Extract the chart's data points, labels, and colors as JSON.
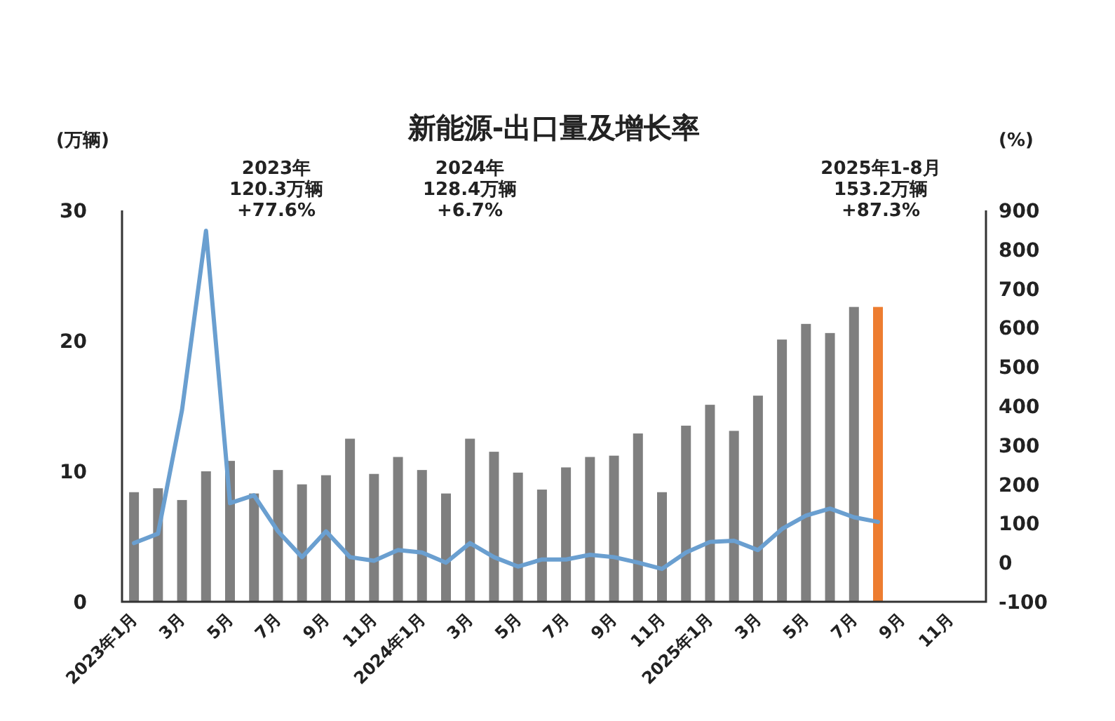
{
  "chart_data": {
    "type": "bar",
    "title": "新能源-出口量及增长率",
    "ylabel": "(万辆)",
    "y2label": "(%)",
    "categories": [
      "2023年1月",
      null,
      "3月",
      null,
      "5月",
      null,
      "7月",
      null,
      "9月",
      null,
      "11月",
      null,
      "2024年1月",
      null,
      "3月",
      null,
      "5月",
      null,
      "7月",
      null,
      "9月",
      null,
      "11月",
      null,
      "2025年1月",
      null,
      "3月",
      null,
      "5月",
      null,
      "7月",
      null,
      "9月",
      null,
      "11月",
      null
    ],
    "series": [
      {
        "colors": [
          "#7f7f7f",
          "#7f7f7f",
          "#7f7f7f",
          "#7f7f7f",
          "#7f7f7f",
          "#7f7f7f",
          "#7f7f7f",
          "#7f7f7f",
          "#7f7f7f",
          "#7f7f7f",
          "#7f7f7f",
          "#7f7f7f",
          "#7f7f7f",
          "#7f7f7f",
          "#7f7f7f",
          "#7f7f7f",
          "#7f7f7f",
          "#7f7f7f",
          "#7f7f7f",
          "#7f7f7f",
          "#7f7f7f",
          "#7f7f7f",
          "#7f7f7f",
          "#7f7f7f",
          "#7f7f7f",
          "#7f7f7f",
          "#7f7f7f",
          "#7f7f7f",
          "#7f7f7f",
          "#7f7f7f",
          "#7f7f7f",
          "#ed7d31",
          null,
          null,
          null,
          null
        ],
        "values": [
          8.4,
          8.7,
          7.8,
          10.0,
          10.8,
          8.3,
          10.1,
          9.0,
          9.7,
          12.5,
          9.8,
          11.1,
          10.1,
          8.3,
          12.5,
          11.5,
          9.9,
          8.6,
          10.3,
          11.1,
          11.2,
          12.9,
          8.4,
          13.5,
          15.1,
          13.1,
          15.8,
          20.1,
          21.3,
          20.6,
          22.6,
          22.6,
          null,
          null,
          null,
          null
        ]
      },
      {
        "type": "line",
        "axis": "y2",
        "color": "#6a9fd0",
        "values": [
          50,
          74,
          390,
          848,
          152,
          172,
          80,
          14,
          80,
          14,
          5,
          32,
          26,
          0,
          50,
          14,
          -10,
          8,
          8,
          20,
          14,
          0,
          -16,
          26,
          53,
          56,
          32,
          86,
          120,
          138,
          116,
          104,
          null,
          null,
          null,
          null
        ]
      }
    ],
    "ylim": [
      0,
      30
    ],
    "yticks": [
      0,
      10,
      20,
      30
    ],
    "y2lim": [
      -100,
      900
    ],
    "y2ticks": [
      -100,
      0,
      100,
      200,
      300,
      400,
      500,
      600,
      700,
      800,
      900
    ],
    "grid": false,
    "annotations": [
      "2023年\n120.3万辆\n+77.6%",
      "2024年\n128.4万辆\n+6.7%",
      "2025年1-8月\n153.2万辆\n+87.3%"
    ]
  }
}
